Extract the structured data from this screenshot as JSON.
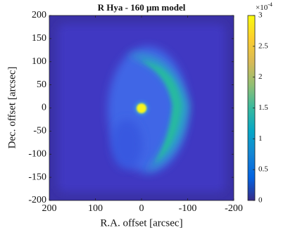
{
  "chart_data": {
    "type": "image",
    "title": "R Hya - 160 μm model",
    "x_label": "R.A. offset [arcsec]",
    "y_label": "Dec. offset [arcsec]",
    "xlim": [
      200,
      -200
    ],
    "xticks": [
      200,
      100,
      0,
      -100,
      -200
    ],
    "ylim": [
      -200,
      200
    ],
    "yticks": [
      -200,
      -150,
      -100,
      -50,
      0,
      50,
      100,
      150,
      200
    ],
    "colormap": "parula",
    "clim": [
      0,
      3
    ],
    "cticks": [
      0,
      0.5,
      1,
      1.5,
      2,
      2.5,
      3
    ],
    "colorbar_multiplier": {
      "base": "×10",
      "exponent": "-4"
    }
  }
}
